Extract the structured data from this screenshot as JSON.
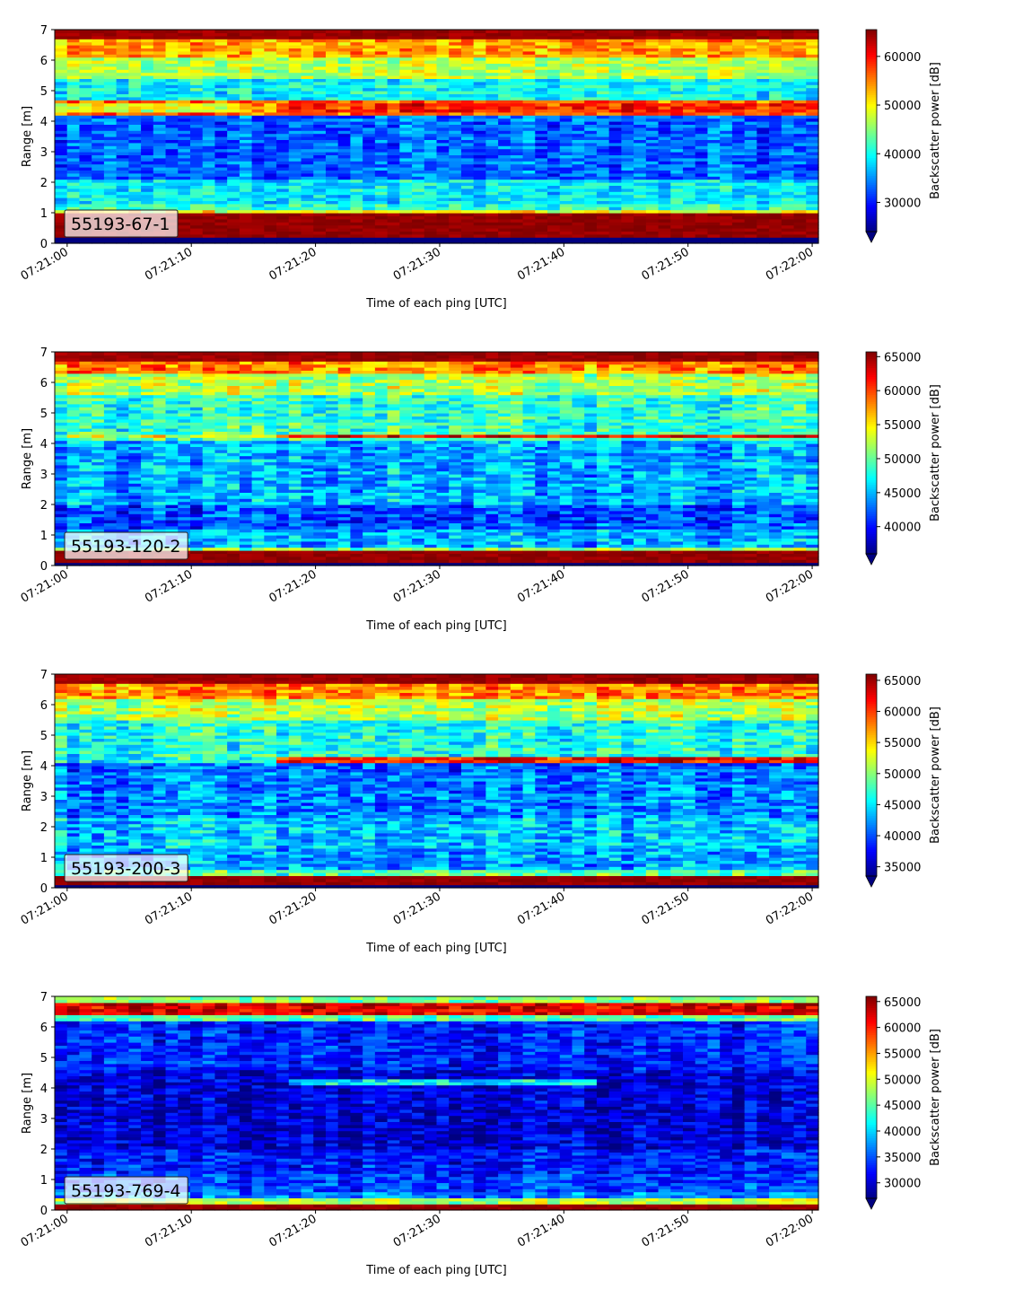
{
  "chart_data": [
    {
      "type": "heatmap",
      "label": "55193-67-1",
      "xlabel": "Time of each ping [UTC]",
      "ylabel": "Range [m]",
      "xticks": [
        "07:21:00",
        "07:21:10",
        "07:21:20",
        "07:21:30",
        "07:21:40",
        "07:21:50",
        "07:22:00"
      ],
      "xlim_seconds": [
        -1,
        60.5
      ],
      "ylim": [
        0,
        7
      ],
      "yticks": [
        0,
        1,
        2,
        3,
        4,
        5,
        6,
        7
      ],
      "colorbar": {
        "label": "Backscatter power [dB]",
        "cmap": "jet",
        "vmin": 24000,
        "vmax": 65500,
        "ticks": [
          30000,
          40000,
          50000,
          60000
        ],
        "extend": "min"
      },
      "bands": [
        {
          "y": [
            0.0,
            0.2
          ],
          "level": 0.0
        },
        {
          "y": [
            0.2,
            1.05
          ],
          "level": 0.98
        },
        {
          "y": [
            1.05,
            1.15
          ],
          "level": 0.62
        },
        {
          "y": [
            1.15,
            1.35
          ],
          "level": 0.42
        },
        {
          "y": [
            1.35,
            2.1
          ],
          "level": 0.36
        },
        {
          "y": [
            2.1,
            4.2
          ],
          "level": 0.22
        },
        {
          "y": [
            4.2,
            4.7
          ],
          "level": 0.78
        },
        {
          "y": [
            4.7,
            5.4
          ],
          "level": 0.38
        },
        {
          "y": [
            5.4,
            6.1
          ],
          "level": 0.55
        },
        {
          "y": [
            6.1,
            6.7
          ],
          "level": 0.72
        },
        {
          "y": [
            6.7,
            7.0
          ],
          "level": 0.97
        }
      ],
      "features": [
        {
          "t": [
            -1,
            14.5
          ],
          "y": [
            4.35,
            4.65
          ],
          "level": 0.6
        },
        {
          "t": [
            16.5,
            60.5
          ],
          "y": [
            4.35,
            4.65
          ],
          "level": 0.84
        }
      ],
      "noise": 0.12
    },
    {
      "type": "heatmap",
      "label": "55193-120-2",
      "xlabel": "Time of each ping [UTC]",
      "ylabel": "Range [m]",
      "xticks": [
        "07:21:00",
        "07:21:10",
        "07:21:20",
        "07:21:30",
        "07:21:40",
        "07:21:50",
        "07:22:00"
      ],
      "xlim_seconds": [
        -1,
        60.5
      ],
      "ylim": [
        0,
        7
      ],
      "yticks": [
        0,
        1,
        2,
        3,
        4,
        5,
        6,
        7
      ],
      "colorbar": {
        "label": "Backscatter power [dB]",
        "cmap": "jet",
        "vmin": 36000,
        "vmax": 65700,
        "ticks": [
          40000,
          45000,
          50000,
          55000,
          60000,
          65000
        ],
        "extend": "min"
      },
      "bands": [
        {
          "y": [
            0.0,
            0.1
          ],
          "level": 0.0
        },
        {
          "y": [
            0.1,
            0.55
          ],
          "level": 0.98
        },
        {
          "y": [
            0.55,
            0.62
          ],
          "level": 0.5
        },
        {
          "y": [
            0.62,
            1.2
          ],
          "level": 0.3
        },
        {
          "y": [
            1.2,
            2.0
          ],
          "level": 0.2
        },
        {
          "y": [
            2.0,
            4.1
          ],
          "level": 0.3
        },
        {
          "y": [
            4.1,
            4.4
          ],
          "level": 0.45
        },
        {
          "y": [
            4.4,
            5.6
          ],
          "level": 0.42
        },
        {
          "y": [
            5.6,
            6.3
          ],
          "level": 0.55
        },
        {
          "y": [
            6.3,
            6.7
          ],
          "level": 0.75
        },
        {
          "y": [
            6.7,
            7.0
          ],
          "level": 0.97
        }
      ],
      "features": [
        {
          "t": [
            -1,
            16.5
          ],
          "y": [
            4.2,
            4.3
          ],
          "level": 0.6
        },
        {
          "t": [
            16.5,
            60.5
          ],
          "y": [
            4.18,
            4.32
          ],
          "level": 0.88
        }
      ],
      "noise": 0.14
    },
    {
      "type": "heatmap",
      "label": "55193-200-3",
      "xlabel": "Time of each ping [UTC]",
      "ylabel": "Range [m]",
      "xticks": [
        "07:21:00",
        "07:21:10",
        "07:21:20",
        "07:21:30",
        "07:21:40",
        "07:21:50",
        "07:22:00"
      ],
      "xlim_seconds": [
        -1,
        60.5
      ],
      "ylim": [
        0,
        7
      ],
      "yticks": [
        0,
        1,
        2,
        3,
        4,
        5,
        6,
        7
      ],
      "colorbar": {
        "label": "Backscatter power [dB]",
        "cmap": "jet",
        "vmin": 33500,
        "vmax": 66000,
        "ticks": [
          35000,
          40000,
          45000,
          50000,
          55000,
          60000,
          65000
        ],
        "extend": "min"
      },
      "bands": [
        {
          "y": [
            0.0,
            0.1
          ],
          "level": 0.0
        },
        {
          "y": [
            0.1,
            0.45
          ],
          "level": 0.98
        },
        {
          "y": [
            0.45,
            0.6
          ],
          "level": 0.45
        },
        {
          "y": [
            0.6,
            1.3
          ],
          "level": 0.28
        },
        {
          "y": [
            1.3,
            2.3
          ],
          "level": 0.32
        },
        {
          "y": [
            2.3,
            3.8
          ],
          "level": 0.25
        },
        {
          "y": [
            3.8,
            4.15
          ],
          "level": 0.22
        },
        {
          "y": [
            4.15,
            5.5
          ],
          "level": 0.4
        },
        {
          "y": [
            5.5,
            6.2
          ],
          "level": 0.55
        },
        {
          "y": [
            6.2,
            6.7
          ],
          "level": 0.74
        },
        {
          "y": [
            6.7,
            7.0
          ],
          "level": 0.97
        }
      ],
      "features": [
        {
          "t": [
            16.5,
            60.5
          ],
          "y": [
            4.15,
            4.3
          ],
          "level": 0.86
        }
      ],
      "noise": 0.14
    },
    {
      "type": "heatmap",
      "label": "55193-769-4",
      "xlabel": "Time of each ping [UTC]",
      "ylabel": "Range [m]",
      "xticks": [
        "07:21:00",
        "07:21:10",
        "07:21:20",
        "07:21:30",
        "07:21:40",
        "07:21:50",
        "07:22:00"
      ],
      "xlim_seconds": [
        -1,
        60.5
      ],
      "ylim": [
        0,
        7
      ],
      "yticks": [
        0,
        1,
        2,
        3,
        4,
        5,
        6,
        7
      ],
      "colorbar": {
        "label": "Backscatter power [dB]",
        "cmap": "jet",
        "vmin": 27000,
        "vmax": 66000,
        "ticks": [
          30000,
          35000,
          40000,
          45000,
          50000,
          55000,
          60000,
          65000
        ],
        "extend": "min"
      },
      "bands": [
        {
          "y": [
            0.0,
            0.25
          ],
          "level": 0.98
        },
        {
          "y": [
            0.25,
            0.4
          ],
          "level": 0.55
        },
        {
          "y": [
            0.4,
            0.6
          ],
          "level": 0.25
        },
        {
          "y": [
            0.6,
            1.2
          ],
          "level": 0.18
        },
        {
          "y": [
            1.2,
            2.0
          ],
          "level": 0.14
        },
        {
          "y": [
            2.0,
            4.6
          ],
          "level": 0.08
        },
        {
          "y": [
            4.6,
            6.2
          ],
          "level": 0.15
        },
        {
          "y": [
            6.2,
            6.45
          ],
          "level": 0.45
        },
        {
          "y": [
            6.45,
            6.85
          ],
          "level": 0.9
        },
        {
          "y": [
            6.85,
            7.0
          ],
          "level": 0.5
        }
      ],
      "features": [
        {
          "t": [
            17.5,
            42.5
          ],
          "y": [
            4.13,
            4.3
          ],
          "level": 0.36
        }
      ],
      "noise": 0.12
    }
  ]
}
